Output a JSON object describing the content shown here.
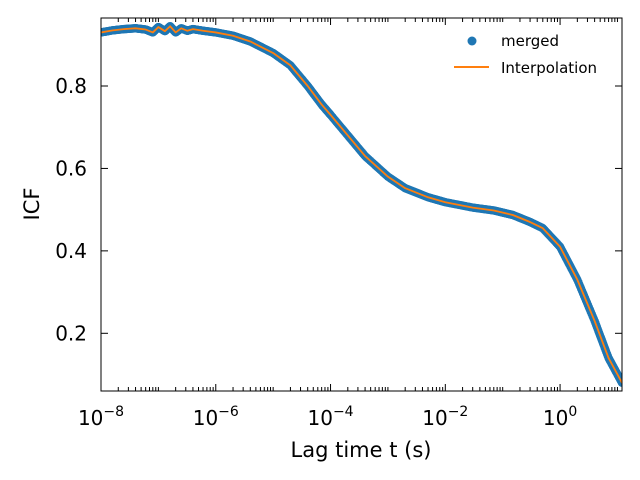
{
  "chart_data": {
    "type": "scatter",
    "title": "",
    "xlabel": "Lag time t (s)",
    "ylabel": "ICF",
    "xscale": "log",
    "xlim": [
      1e-08,
      12
    ],
    "ylim": [
      0.06,
      0.965
    ],
    "x_ticks": [
      {
        "value": 1e-08,
        "base": "10",
        "exp": "−8"
      },
      {
        "value": 1e-06,
        "base": "10",
        "exp": "−6"
      },
      {
        "value": 0.0001,
        "base": "10",
        "exp": "−4"
      },
      {
        "value": 0.01,
        "base": "10",
        "exp": "−2"
      },
      {
        "value": 1,
        "base": "10",
        "exp": "0"
      }
    ],
    "y_ticks": [
      {
        "value": 0.2,
        "label": "0.2"
      },
      {
        "value": 0.4,
        "label": "0.4"
      },
      {
        "value": 0.6,
        "label": "0.6"
      },
      {
        "value": 0.8,
        "label": "0.8"
      }
    ],
    "legend_position": "top-right",
    "grid": false,
    "series": [
      {
        "name": "merged",
        "kind": "scatter",
        "color": "#1f77b4",
        "points": [
          [
            1e-08,
            0.93
          ],
          [
            1.6e-08,
            0.935
          ],
          [
            2.5e-08,
            0.938
          ],
          [
            4e-08,
            0.94
          ],
          [
            6e-08,
            0.937
          ],
          [
            8e-08,
            0.93
          ],
          [
            1e-07,
            0.943
          ],
          [
            1.3e-07,
            0.933
          ],
          [
            1.6e-07,
            0.945
          ],
          [
            2e-07,
            0.93
          ],
          [
            2.5e-07,
            0.94
          ],
          [
            3.2e-07,
            0.934
          ],
          [
            4e-07,
            0.938
          ],
          [
            6e-07,
            0.934
          ],
          [
            1e-06,
            0.93
          ],
          [
            2e-06,
            0.922
          ],
          [
            4e-06,
            0.908
          ],
          [
            1e-05,
            0.88
          ],
          [
            2e-05,
            0.85
          ],
          [
            4e-05,
            0.8
          ],
          [
            7e-05,
            0.755
          ],
          [
            0.0001,
            0.73
          ],
          [
            0.0002,
            0.68
          ],
          [
            0.0004,
            0.63
          ],
          [
            0.001,
            0.58
          ],
          [
            0.002,
            0.552
          ],
          [
            0.005,
            0.53
          ],
          [
            0.01,
            0.518
          ],
          [
            0.03,
            0.505
          ],
          [
            0.07,
            0.498
          ],
          [
            0.15,
            0.487
          ],
          [
            0.3,
            0.47
          ],
          [
            0.5,
            0.455
          ],
          [
            1.0,
            0.41
          ],
          [
            2.0,
            0.33
          ],
          [
            4.0,
            0.23
          ],
          [
            7.0,
            0.14
          ],
          [
            12.0,
            0.08
          ]
        ]
      },
      {
        "name": "Interpolation",
        "kind": "line",
        "color": "#ff7f0e",
        "points": [
          [
            1e-08,
            0.93
          ],
          [
            1.6e-08,
            0.935
          ],
          [
            2.5e-08,
            0.938
          ],
          [
            4e-08,
            0.94
          ],
          [
            6e-08,
            0.937
          ],
          [
            8e-08,
            0.93
          ],
          [
            1e-07,
            0.943
          ],
          [
            1.3e-07,
            0.933
          ],
          [
            1.6e-07,
            0.945
          ],
          [
            2e-07,
            0.93
          ],
          [
            2.5e-07,
            0.94
          ],
          [
            3.2e-07,
            0.934
          ],
          [
            4e-07,
            0.938
          ],
          [
            6e-07,
            0.934
          ],
          [
            1e-06,
            0.93
          ],
          [
            2e-06,
            0.922
          ],
          [
            4e-06,
            0.908
          ],
          [
            1e-05,
            0.88
          ],
          [
            2e-05,
            0.85
          ],
          [
            4e-05,
            0.8
          ],
          [
            7e-05,
            0.755
          ],
          [
            0.0001,
            0.73
          ],
          [
            0.0002,
            0.68
          ],
          [
            0.0004,
            0.63
          ],
          [
            0.001,
            0.58
          ],
          [
            0.002,
            0.552
          ],
          [
            0.005,
            0.53
          ],
          [
            0.01,
            0.518
          ],
          [
            0.03,
            0.505
          ],
          [
            0.07,
            0.498
          ],
          [
            0.15,
            0.487
          ],
          [
            0.3,
            0.47
          ],
          [
            0.5,
            0.455
          ],
          [
            1.0,
            0.41
          ],
          [
            2.0,
            0.33
          ],
          [
            4.0,
            0.23
          ],
          [
            7.0,
            0.14
          ],
          [
            12.0,
            0.08
          ]
        ]
      }
    ]
  }
}
